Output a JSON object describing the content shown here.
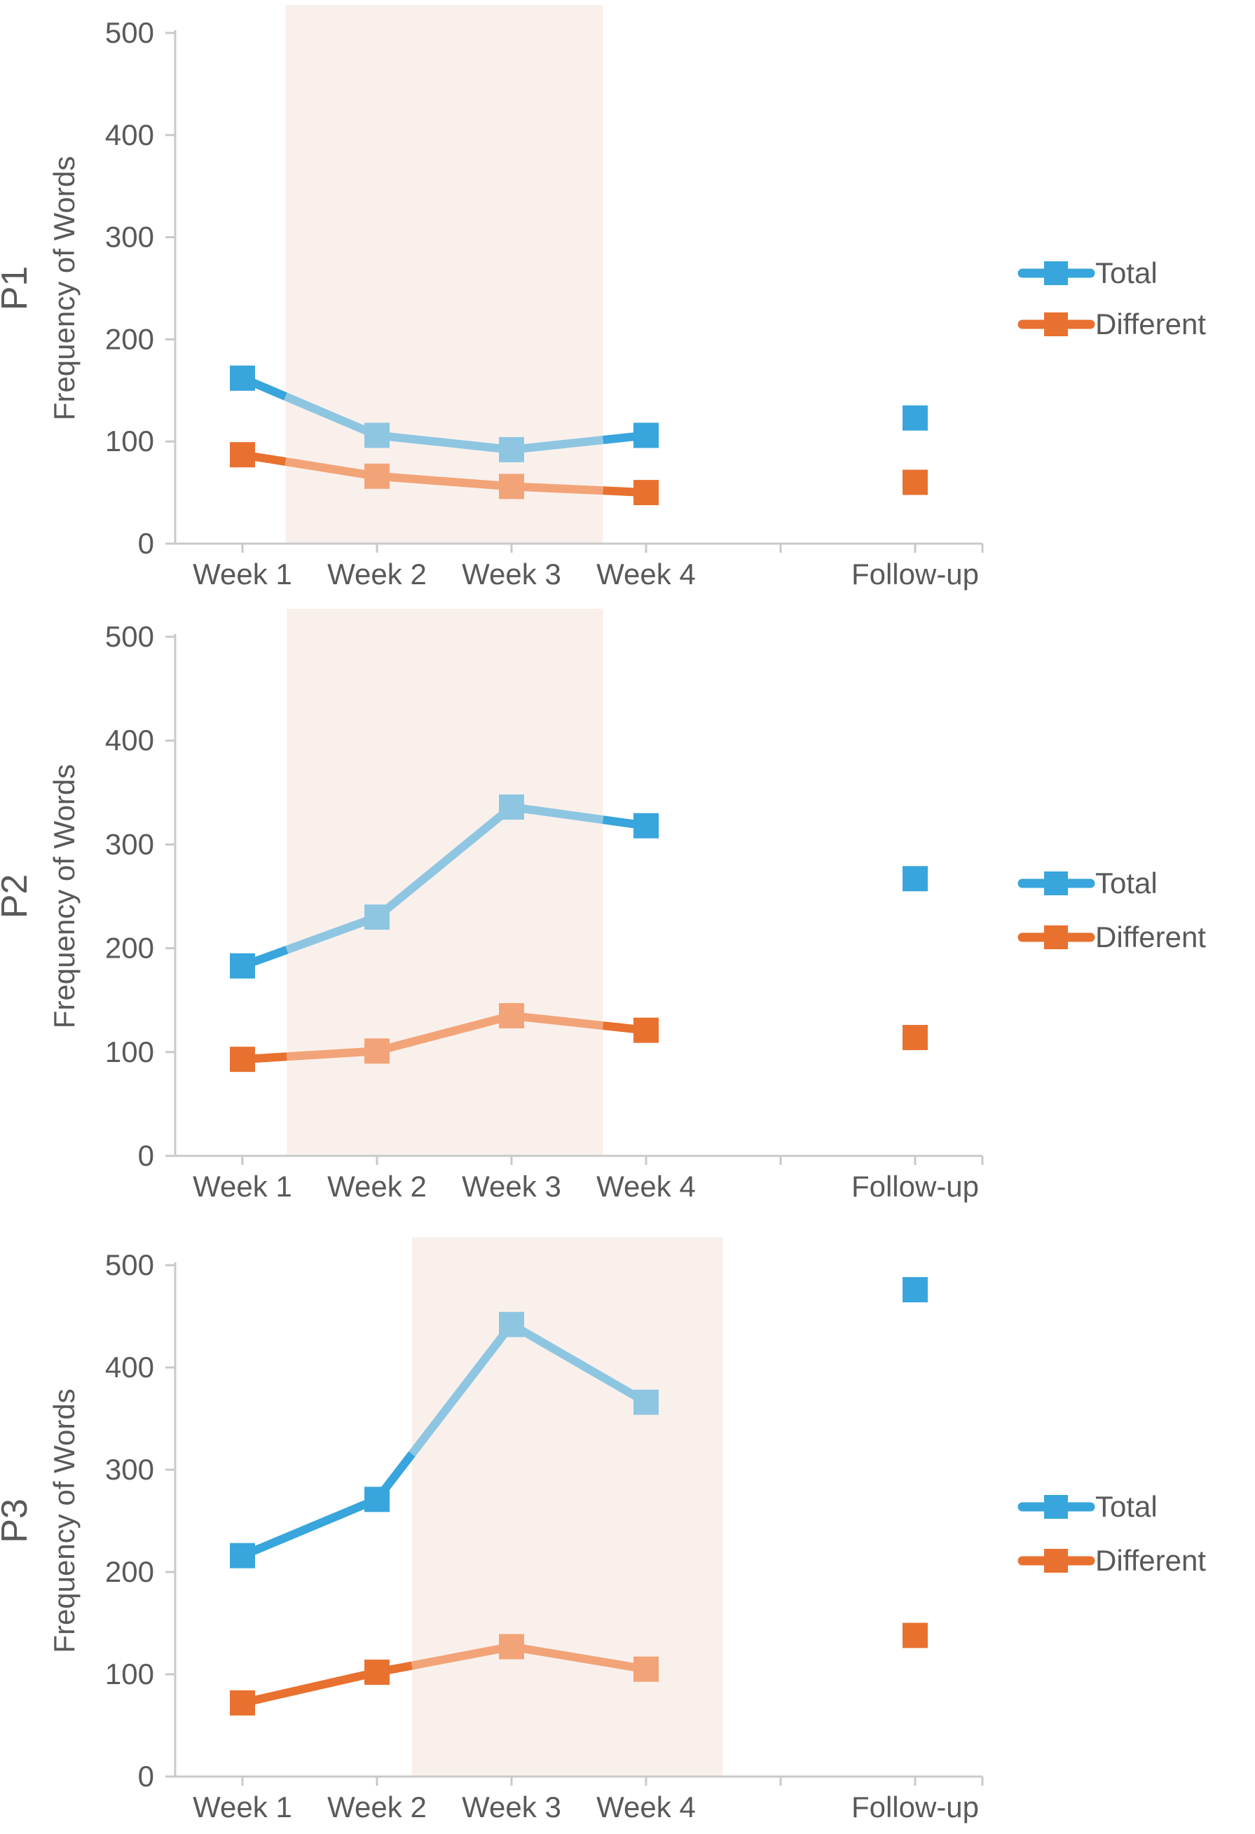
{
  "page": {
    "background": "#ffffff"
  },
  "colors": {
    "total_dark": "#38A5DC",
    "total_light": "#8EC6E2",
    "different_dark": "#E8712F",
    "different_light": "#F2A478",
    "shade": "#FAF0EB",
    "axis_line": "#C9C9C9",
    "text": "#595959"
  },
  "legend": {
    "items": [
      "Total",
      "Different"
    ]
  },
  "chart_data": [
    {
      "type": "line",
      "title": "P1",
      "ylabel": "Frequency of Words",
      "ylim": [
        0,
        500
      ],
      "ytick_step": 100,
      "ytick_labels": [
        "0",
        "100",
        "200",
        "300",
        "400",
        "500"
      ],
      "categories": [
        "Week 1",
        "Week 2",
        "Week 3",
        "Week 4",
        "",
        "Follow-up"
      ],
      "grid": false,
      "legend_position": "right",
      "series": [
        {
          "name": "Total",
          "color": "#38A5DC",
          "color_in_shade": "#8EC6E2",
          "values": [
            162,
            106,
            92,
            106,
            null,
            123
          ]
        },
        {
          "name": "Different",
          "color": "#E8712F",
          "color_in_shade": "#F2A478",
          "values": [
            87,
            66,
            56,
            50,
            null,
            60
          ]
        }
      ],
      "shaded_region": {
        "from_slot": 0.82,
        "to_slot": 3.18,
        "color": "#FAF0EB"
      }
    },
    {
      "type": "line",
      "title": "P2",
      "ylabel": "Frequency of Words",
      "ylim": [
        0,
        500
      ],
      "ytick_step": 100,
      "ytick_labels": [
        "0",
        "100",
        "200",
        "300",
        "400",
        "500"
      ],
      "categories": [
        "Week 1",
        "Week 2",
        "Week 3",
        "Week 4",
        "",
        "Follow-up"
      ],
      "grid": false,
      "legend_position": "right",
      "series": [
        {
          "name": "Total",
          "color": "#38A5DC",
          "color_in_shade": "#8EC6E2",
          "values": [
            183,
            230,
            336,
            318,
            null,
            267
          ]
        },
        {
          "name": "Different",
          "color": "#E8712F",
          "color_in_shade": "#F2A478",
          "values": [
            93,
            101,
            135,
            121,
            null,
            114
          ]
        }
      ],
      "shaded_region": {
        "from_slot": 0.83,
        "to_slot": 3.18,
        "color": "#FAF0EB"
      }
    },
    {
      "type": "line",
      "title": "P3",
      "ylabel": "Frequency of Words",
      "ylim": [
        0,
        500
      ],
      "ytick_step": 100,
      "ytick_labels": [
        "0",
        "100",
        "200",
        "300",
        "400",
        "500"
      ],
      "categories": [
        "Week 1",
        "Week 2",
        "Week 3",
        "Week 4",
        "",
        "Follow-up"
      ],
      "grid": false,
      "legend_position": "right",
      "series": [
        {
          "name": "Total",
          "color": "#38A5DC",
          "color_in_shade": "#8EC6E2",
          "values": [
            216,
            271,
            442,
            366,
            null,
            476
          ]
        },
        {
          "name": "Different",
          "color": "#E8712F",
          "color_in_shade": "#F2A478",
          "values": [
            72,
            102,
            127,
            105,
            null,
            138
          ]
        }
      ],
      "shaded_region": {
        "from_slot": 1.76,
        "to_slot": 4.07,
        "color": "#FAF0EB"
      }
    }
  ]
}
